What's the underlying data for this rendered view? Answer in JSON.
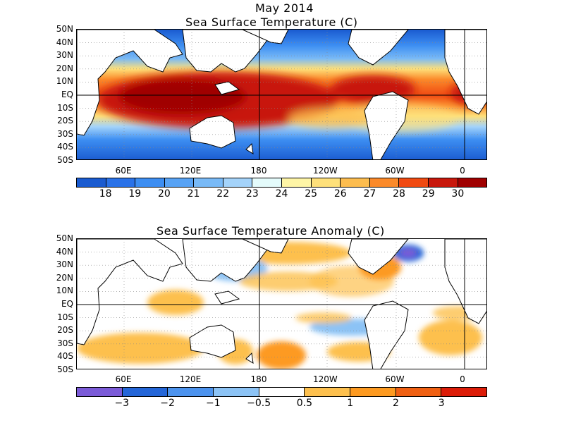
{
  "title_month": "May 2014",
  "panel1": {
    "title": "Sea Surface Temperature (C)",
    "colorbar": {
      "colors": [
        "#1a5bd0",
        "#2a72e8",
        "#3d8ef2",
        "#58a3f5",
        "#79baf7",
        "#a4d3fa",
        "#e4fbfb",
        "#fef5a6",
        "#fee07a",
        "#fdbd4f",
        "#fb8a2a",
        "#f04a12",
        "#c8180c",
        "#a00000"
      ],
      "labels": [
        "18",
        "19",
        "20",
        "21",
        "22",
        "23",
        "24",
        "25",
        "26",
        "27",
        "28",
        "29",
        "30"
      ]
    }
  },
  "panel2": {
    "title": "Sea Surface Temperature Anomaly (C)",
    "colorbar": {
      "colors": [
        "#7b5bd8",
        "#2466d8",
        "#4c93ee",
        "#8cc3f5",
        "#ffffff",
        "#fdc04e",
        "#fd9a20",
        "#f06012",
        "#dc1c08"
      ],
      "labels": [
        "−3",
        "−2",
        "−1",
        "−0.5",
        "0.5",
        "1",
        "2",
        "3"
      ]
    }
  },
  "lat_labels": [
    "50N",
    "40N",
    "30N",
    "20N",
    "10N",
    "EQ",
    "10S",
    "20S",
    "30S",
    "40S",
    "50S"
  ],
  "lon_labels": [
    "60E",
    "120E",
    "180",
    "120W",
    "60W",
    "0"
  ]
}
